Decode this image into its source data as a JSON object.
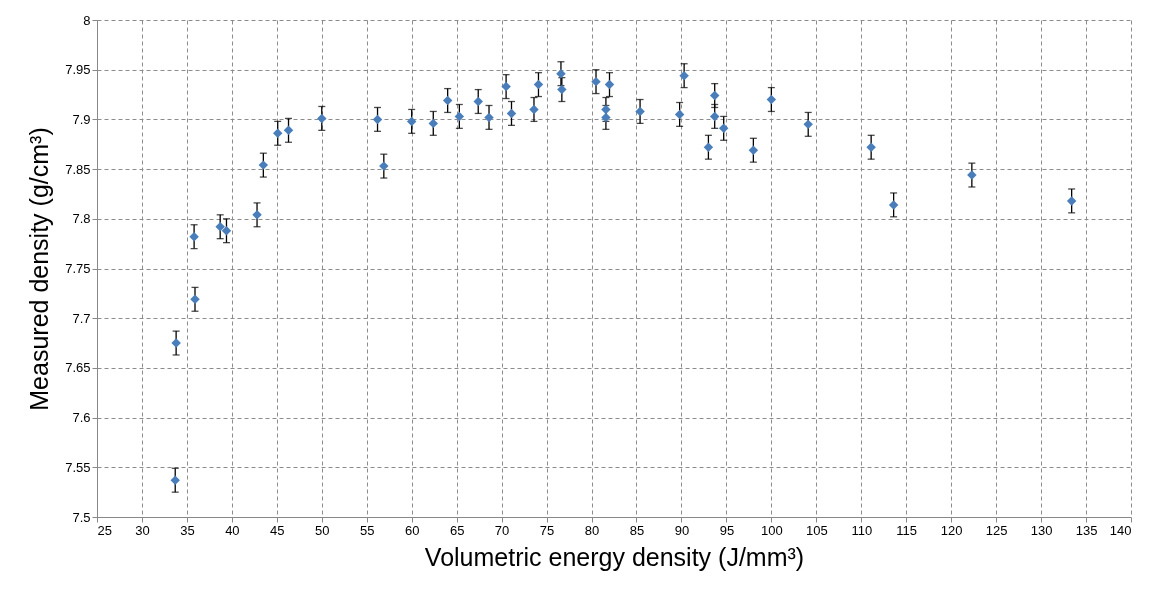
{
  "chart_data": {
    "type": "scatter",
    "xlabel": "Volumetric energy density (J/mm³)",
    "ylabel": "Measured density (g/cm³)",
    "x": [
      33.8,
      33.7,
      35.8,
      35.9,
      38.7,
      39.4,
      42.8,
      43.5,
      45.1,
      46.3,
      50.0,
      56.2,
      56.9,
      60.0,
      62.4,
      64.0,
      65.3,
      67.4,
      68.6,
      70.5,
      71.1,
      73.6,
      74.1,
      76.6,
      76.7,
      80.5,
      81.6,
      81.6,
      82.0,
      85.4,
      89.8,
      90.3,
      93.0,
      93.7,
      93.7,
      94.7,
      98.0,
      100.0,
      104.1,
      111.1,
      113.6,
      122.3,
      133.4
    ],
    "series": [
      {
        "color": "#4a7ebb",
        "values": [
          7.675,
          7.537,
          7.782,
          7.719,
          7.792,
          7.788,
          7.804,
          7.854,
          7.886,
          7.889,
          7.901,
          7.9,
          7.853,
          7.898,
          7.896,
          7.919,
          7.903,
          7.918,
          7.902,
          7.933,
          7.906,
          7.91,
          7.935,
          7.946,
          7.93,
          7.938,
          7.91,
          7.902,
          7.935,
          7.908,
          7.905,
          7.944,
          7.872,
          7.924,
          7.903,
          7.891,
          7.869,
          7.92,
          7.895,
          7.872,
          7.814,
          7.844,
          7.818
        ],
        "errors": [
          0.012,
          0.012,
          0.012,
          0.012,
          0.012,
          0.012,
          0.012,
          0.012,
          0.012,
          0.012,
          0.012,
          0.012,
          0.012,
          0.012,
          0.012,
          0.012,
          0.012,
          0.012,
          0.012,
          0.012,
          0.012,
          0.012,
          0.012,
          0.012,
          0.012,
          0.012,
          0.012,
          0.012,
          0.012,
          0.012,
          0.012,
          0.012,
          0.012,
          0.012,
          0.012,
          0.012,
          0.012,
          0.012,
          0.012,
          0.012,
          0.012,
          0.012,
          0.012
        ]
      }
    ],
    "xlim": [
      25,
      140
    ],
    "xticks": [
      25,
      30,
      35,
      40,
      45,
      50,
      55,
      60,
      65,
      70,
      75,
      80,
      85,
      90,
      95,
      100,
      105,
      110,
      115,
      120,
      125,
      130,
      135,
      140
    ],
    "ylim": [
      7.5,
      8
    ],
    "yticks": [
      7.5,
      7.55,
      7.6,
      7.65,
      7.7,
      7.75,
      7.8,
      7.85,
      7.9,
      7.95,
      8
    ],
    "grid": true,
    "line_style": "dashed",
    "marker": "diamond"
  }
}
